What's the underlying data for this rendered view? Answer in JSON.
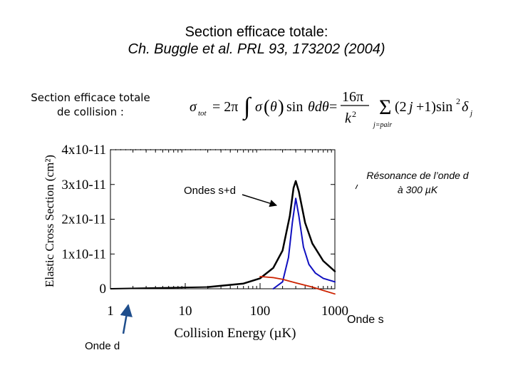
{
  "header": {
    "title": "Section efficace totale:",
    "subtitle": "Ch. Buggle et al. PRL 93, 173202 (2004)"
  },
  "caption": {
    "line1": "Section efficace totale",
    "line2": "de collision :"
  },
  "annotations": {
    "ondes_sd": "Ondes s+d",
    "resonance_line1": "Résonance de l’onde d",
    "resonance_line2": "à 300 µK",
    "onde_s": "Onde s",
    "onde_d": "Onde d"
  },
  "colors": {
    "total_curve": "#000000",
    "d_wave_curve": "#1010c0",
    "s_wave_curve": "#cc2200",
    "arrow": "#1f4e8c"
  },
  "chart_data": {
    "type": "line",
    "xlabel": "Collision Energy (µK)",
    "ylabel": "Elastic Cross Section (cm²)",
    "x_scale": "log",
    "xlim": [
      1,
      1000
    ],
    "ylim": [
      0,
      4e-11
    ],
    "x_ticks": [
      "1",
      "10",
      "100",
      "1000"
    ],
    "y_ticks": [
      "0",
      "1x10-11",
      "2x10-11",
      "3x10-11",
      "4x10-11"
    ],
    "series": [
      {
        "id": "total",
        "x": [
          20,
          60,
          100,
          150,
          200,
          250,
          280,
          300,
          330,
          400,
          500,
          700,
          1000
        ],
        "y": [
          5e-13,
          1.5e-12,
          3e-12,
          6e-12,
          1.1e-11,
          2.1e-11,
          2.9e-11,
          3.1e-11,
          2.8e-11,
          1.9e-11,
          1.3e-11,
          8e-12,
          5e-12
        ]
      },
      {
        "id": "d_wave",
        "x": [
          150,
          200,
          240,
          270,
          300,
          330,
          380,
          450,
          550,
          700,
          1000
        ],
        "y": [
          0,
          2e-12,
          9e-12,
          1.9e-11,
          2.6e-11,
          2.1e-11,
          1.2e-11,
          7e-12,
          4.5e-12,
          3e-12,
          2e-12
        ]
      },
      {
        "id": "s_wave",
        "x": [
          100,
          150,
          200,
          300,
          500,
          700,
          1000
        ],
        "y": [
          3.5e-12,
          3.2e-12,
          2.7e-12,
          1.7e-12,
          5e-13,
          -5e-13,
          -1.5e-12
        ]
      }
    ]
  }
}
